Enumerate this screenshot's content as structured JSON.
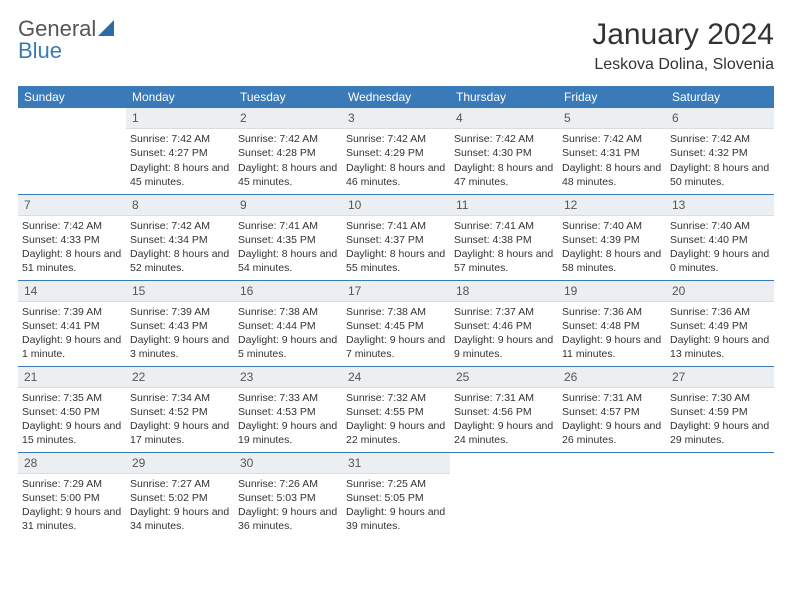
{
  "logo": {
    "word1": "General",
    "word2": "Blue"
  },
  "title": "January 2024",
  "location": "Leskova Dolina, Slovenia",
  "colors": {
    "header_bg": "#3a7ab8",
    "header_text": "#ffffff",
    "daynum_bg": "#eceff1",
    "rule": "#3a7ab8",
    "body_text": "#333333"
  },
  "typography": {
    "title_fontsize": 30,
    "location_fontsize": 16,
    "dayheader_fontsize": 12,
    "cell_fontsize": 10.5
  },
  "dayHeaders": [
    "Sunday",
    "Monday",
    "Tuesday",
    "Wednesday",
    "Thursday",
    "Friday",
    "Saturday"
  ],
  "weeks": [
    [
      {
        "n": "",
        "sr": "",
        "ss": "",
        "dl": ""
      },
      {
        "n": "1",
        "sr": "Sunrise: 7:42 AM",
        "ss": "Sunset: 4:27 PM",
        "dl": "Daylight: 8 hours and 45 minutes."
      },
      {
        "n": "2",
        "sr": "Sunrise: 7:42 AM",
        "ss": "Sunset: 4:28 PM",
        "dl": "Daylight: 8 hours and 45 minutes."
      },
      {
        "n": "3",
        "sr": "Sunrise: 7:42 AM",
        "ss": "Sunset: 4:29 PM",
        "dl": "Daylight: 8 hours and 46 minutes."
      },
      {
        "n": "4",
        "sr": "Sunrise: 7:42 AM",
        "ss": "Sunset: 4:30 PM",
        "dl": "Daylight: 8 hours and 47 minutes."
      },
      {
        "n": "5",
        "sr": "Sunrise: 7:42 AM",
        "ss": "Sunset: 4:31 PM",
        "dl": "Daylight: 8 hours and 48 minutes."
      },
      {
        "n": "6",
        "sr": "Sunrise: 7:42 AM",
        "ss": "Sunset: 4:32 PM",
        "dl": "Daylight: 8 hours and 50 minutes."
      }
    ],
    [
      {
        "n": "7",
        "sr": "Sunrise: 7:42 AM",
        "ss": "Sunset: 4:33 PM",
        "dl": "Daylight: 8 hours and 51 minutes."
      },
      {
        "n": "8",
        "sr": "Sunrise: 7:42 AM",
        "ss": "Sunset: 4:34 PM",
        "dl": "Daylight: 8 hours and 52 minutes."
      },
      {
        "n": "9",
        "sr": "Sunrise: 7:41 AM",
        "ss": "Sunset: 4:35 PM",
        "dl": "Daylight: 8 hours and 54 minutes."
      },
      {
        "n": "10",
        "sr": "Sunrise: 7:41 AM",
        "ss": "Sunset: 4:37 PM",
        "dl": "Daylight: 8 hours and 55 minutes."
      },
      {
        "n": "11",
        "sr": "Sunrise: 7:41 AM",
        "ss": "Sunset: 4:38 PM",
        "dl": "Daylight: 8 hours and 57 minutes."
      },
      {
        "n": "12",
        "sr": "Sunrise: 7:40 AM",
        "ss": "Sunset: 4:39 PM",
        "dl": "Daylight: 8 hours and 58 minutes."
      },
      {
        "n": "13",
        "sr": "Sunrise: 7:40 AM",
        "ss": "Sunset: 4:40 PM",
        "dl": "Daylight: 9 hours and 0 minutes."
      }
    ],
    [
      {
        "n": "14",
        "sr": "Sunrise: 7:39 AM",
        "ss": "Sunset: 4:41 PM",
        "dl": "Daylight: 9 hours and 1 minute."
      },
      {
        "n": "15",
        "sr": "Sunrise: 7:39 AM",
        "ss": "Sunset: 4:43 PM",
        "dl": "Daylight: 9 hours and 3 minutes."
      },
      {
        "n": "16",
        "sr": "Sunrise: 7:38 AM",
        "ss": "Sunset: 4:44 PM",
        "dl": "Daylight: 9 hours and 5 minutes."
      },
      {
        "n": "17",
        "sr": "Sunrise: 7:38 AM",
        "ss": "Sunset: 4:45 PM",
        "dl": "Daylight: 9 hours and 7 minutes."
      },
      {
        "n": "18",
        "sr": "Sunrise: 7:37 AM",
        "ss": "Sunset: 4:46 PM",
        "dl": "Daylight: 9 hours and 9 minutes."
      },
      {
        "n": "19",
        "sr": "Sunrise: 7:36 AM",
        "ss": "Sunset: 4:48 PM",
        "dl": "Daylight: 9 hours and 11 minutes."
      },
      {
        "n": "20",
        "sr": "Sunrise: 7:36 AM",
        "ss": "Sunset: 4:49 PM",
        "dl": "Daylight: 9 hours and 13 minutes."
      }
    ],
    [
      {
        "n": "21",
        "sr": "Sunrise: 7:35 AM",
        "ss": "Sunset: 4:50 PM",
        "dl": "Daylight: 9 hours and 15 minutes."
      },
      {
        "n": "22",
        "sr": "Sunrise: 7:34 AM",
        "ss": "Sunset: 4:52 PM",
        "dl": "Daylight: 9 hours and 17 minutes."
      },
      {
        "n": "23",
        "sr": "Sunrise: 7:33 AM",
        "ss": "Sunset: 4:53 PM",
        "dl": "Daylight: 9 hours and 19 minutes."
      },
      {
        "n": "24",
        "sr": "Sunrise: 7:32 AM",
        "ss": "Sunset: 4:55 PM",
        "dl": "Daylight: 9 hours and 22 minutes."
      },
      {
        "n": "25",
        "sr": "Sunrise: 7:31 AM",
        "ss": "Sunset: 4:56 PM",
        "dl": "Daylight: 9 hours and 24 minutes."
      },
      {
        "n": "26",
        "sr": "Sunrise: 7:31 AM",
        "ss": "Sunset: 4:57 PM",
        "dl": "Daylight: 9 hours and 26 minutes."
      },
      {
        "n": "27",
        "sr": "Sunrise: 7:30 AM",
        "ss": "Sunset: 4:59 PM",
        "dl": "Daylight: 9 hours and 29 minutes."
      }
    ],
    [
      {
        "n": "28",
        "sr": "Sunrise: 7:29 AM",
        "ss": "Sunset: 5:00 PM",
        "dl": "Daylight: 9 hours and 31 minutes."
      },
      {
        "n": "29",
        "sr": "Sunrise: 7:27 AM",
        "ss": "Sunset: 5:02 PM",
        "dl": "Daylight: 9 hours and 34 minutes."
      },
      {
        "n": "30",
        "sr": "Sunrise: 7:26 AM",
        "ss": "Sunset: 5:03 PM",
        "dl": "Daylight: 9 hours and 36 minutes."
      },
      {
        "n": "31",
        "sr": "Sunrise: 7:25 AM",
        "ss": "Sunset: 5:05 PM",
        "dl": "Daylight: 9 hours and 39 minutes."
      },
      {
        "n": "",
        "sr": "",
        "ss": "",
        "dl": ""
      },
      {
        "n": "",
        "sr": "",
        "ss": "",
        "dl": ""
      },
      {
        "n": "",
        "sr": "",
        "ss": "",
        "dl": ""
      }
    ]
  ]
}
